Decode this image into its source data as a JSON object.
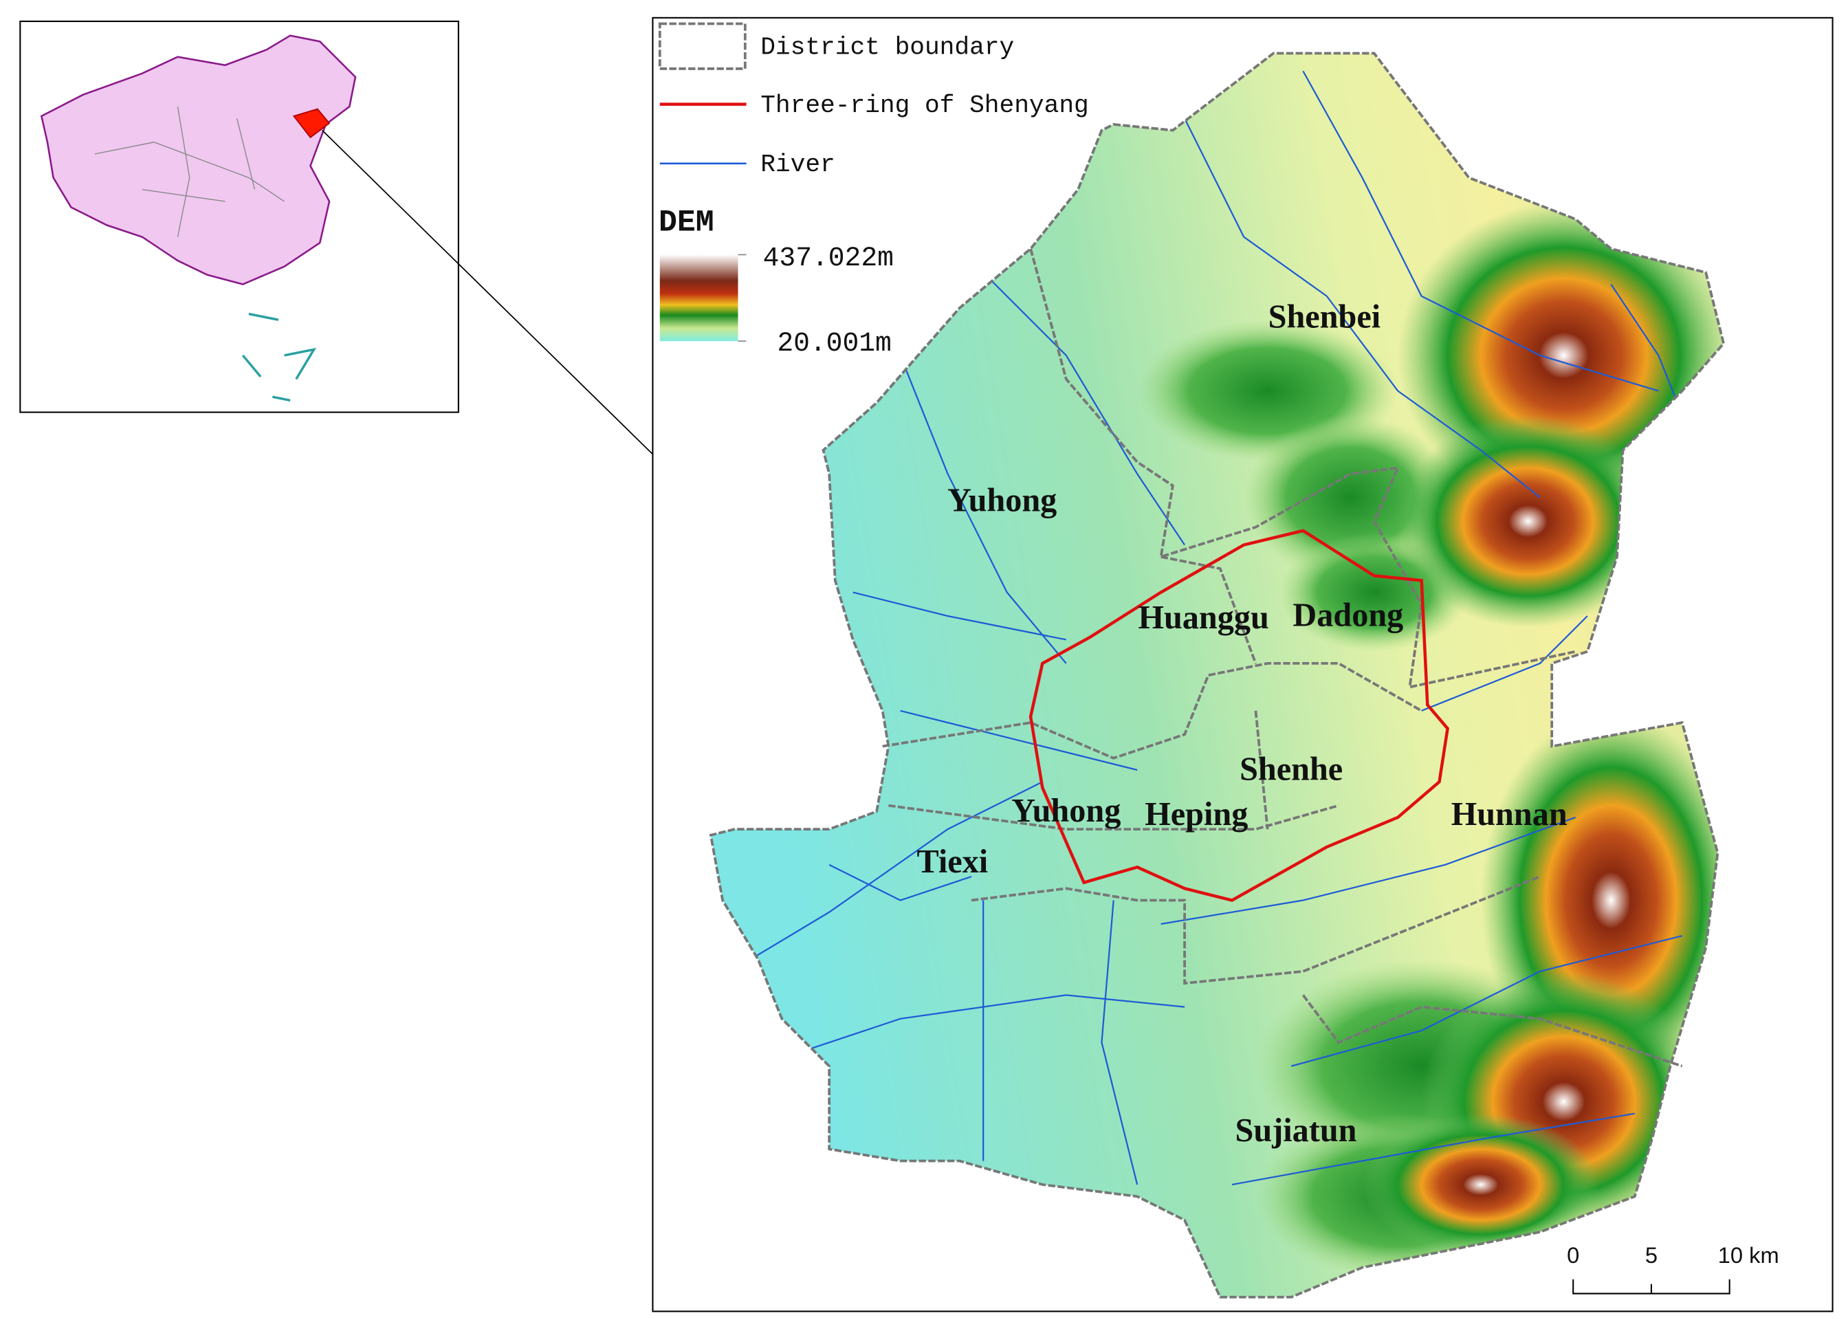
{
  "legend": {
    "items": [
      {
        "label": "District boundary"
      },
      {
        "label": "Three-ring of Shenyang"
      },
      {
        "label": "River"
      }
    ],
    "dem_title": "DEM",
    "dem_max": "437.022m",
    "dem_min": "20.001m"
  },
  "districts": [
    {
      "label": "Shenbei"
    },
    {
      "label": "Yuhong"
    },
    {
      "label": "Huanggu"
    },
    {
      "label": "Dadong"
    },
    {
      "label": "Shenhe"
    },
    {
      "label": "Yuhong"
    },
    {
      "label": "Heping"
    },
    {
      "label": "Hunnan"
    },
    {
      "label": "Tiexi"
    },
    {
      "label": "Sujiatun"
    }
  ],
  "scale_bar": {
    "ticks": [
      "0",
      "5",
      "10 km"
    ]
  }
}
